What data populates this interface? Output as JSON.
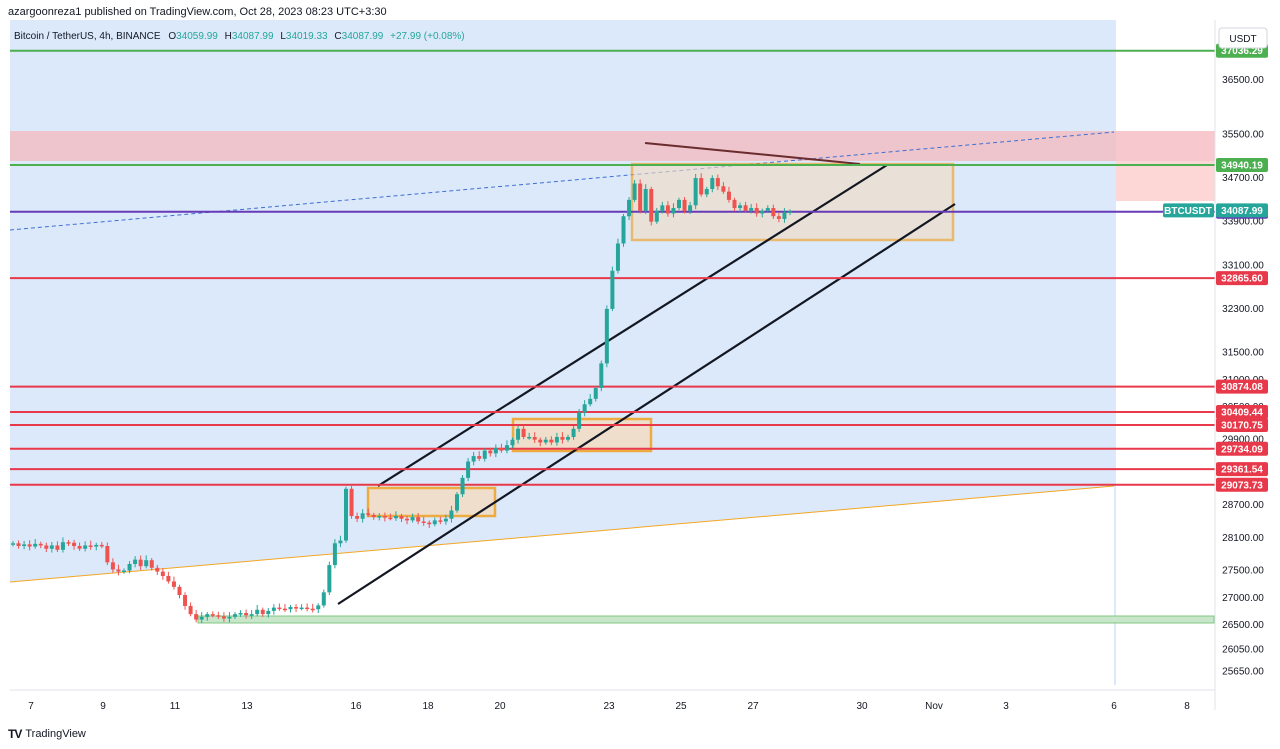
{
  "caption": "azargoonreza1 published on TradingView.com, Oct 28, 2023 08:23 UTC+3:30",
  "footer_brand": "TradingView",
  "legend": {
    "symbol": "Bitcoin / TetherUS, 4h, BINANCE",
    "o_label": "O",
    "o": "34059.99",
    "h_label": "H",
    "h": "34087.99",
    "l_label": "L",
    "l": "34019.33",
    "c_label": "C",
    "c": "34087.99",
    "change": "+27.99 (+0.08%)"
  },
  "currency": "USDT",
  "colors": {
    "up": "#26a69a",
    "down": "#ef5350",
    "red_line": "#e8394b",
    "green_line": "#4caf50",
    "purple_line": "#673ab7",
    "orange": "#f39c12",
    "channel": "#131722",
    "bg_zone": "#dbe9fb"
  },
  "chart_data": {
    "type": "candlestick",
    "symbol": "BTCUSDT",
    "timeframe": "4h",
    "x_ticks": [
      "7",
      "9",
      "11",
      "13",
      "16",
      "18",
      "20",
      "23",
      "25",
      "27",
      "30",
      "Nov",
      "3",
      "6",
      "8"
    ],
    "y_ticks": [
      25650,
      26050,
      26500,
      27000,
      27500,
      28100,
      28700,
      29300,
      29900,
      30500,
      31000,
      31500,
      32300,
      33100,
      33900,
      34700,
      35500,
      36500
    ],
    "y_tick_labels": [
      "25650.00",
      "26050.00",
      "26500.00",
      "27000.00",
      "27500.00",
      "28100.00",
      "28700.00",
      "29300.00",
      "29900.00",
      "30500.00",
      "31000.00",
      "31500.00",
      "32300.00",
      "33100.00",
      "33900.00",
      "34700.00",
      "35500.00",
      "36500.00"
    ],
    "ylim": [
      25400,
      37600
    ],
    "horizontal_levels": [
      {
        "value": 37036.29,
        "label": "37036.29",
        "color": "#4caf50"
      },
      {
        "value": 34940.19,
        "label": "34940.19",
        "color": "#4caf50"
      },
      {
        "value": 34081.08,
        "label": "34081.08",
        "color": "#673ab7"
      },
      {
        "value": 32865.6,
        "label": "32865.60",
        "color": "#e8394b"
      },
      {
        "value": 30874.08,
        "label": "30874.08",
        "color": "#e8394b"
      },
      {
        "value": 30409.44,
        "label": "30409.44",
        "color": "#e8394b"
      },
      {
        "value": 30170.75,
        "label": "30170.75",
        "color": "#e8394b"
      },
      {
        "value": 29734.09,
        "label": "29734.09",
        "color": "#e8394b"
      },
      {
        "value": 29361.54,
        "label": "29361.54",
        "color": "#e8394b"
      },
      {
        "value": 29073.73,
        "label": "29073.73",
        "color": "#e8394b"
      }
    ],
    "last_price": {
      "label": "BTCUSDT",
      "value": 34087.99,
      "text": "34087.99"
    },
    "closes": [
      28000,
      27950,
      27980,
      27940,
      27990,
      27960,
      27900,
      27960,
      27880,
      28020,
      28010,
      27950,
      27900,
      27960,
      27940,
      27970,
      27950,
      27650,
      27520,
      27480,
      27500,
      27620,
      27700,
      27580,
      27690,
      27550,
      27480,
      27400,
      27300,
      27200,
      27050,
      26850,
      26700,
      26600,
      26650,
      26700,
      26680,
      26660,
      26620,
      26650,
      26700,
      26720,
      26680,
      26700,
      26780,
      26700,
      26760,
      26820,
      26800,
      26790,
      26830,
      26810,
      26820,
      26800,
      26790,
      26860,
      27100,
      27600,
      28000,
      28050,
      29000,
      28500,
      28450,
      28550,
      28520,
      28480,
      28500,
      28470,
      28460,
      28500,
      28450,
      28420,
      28480,
      28400,
      28380,
      28350,
      28420,
      28400,
      28450,
      28600,
      28900,
      29200,
      29500,
      29600,
      29550,
      29700,
      29650,
      29750,
      29700,
      29800,
      29900,
      30100,
      29950,
      29950,
      29900,
      29850,
      29900,
      29850,
      29950,
      29900,
      29950,
      30100,
      30400,
      30550,
      30650,
      30850,
      31300,
      32300,
      33000,
      33500,
      34000,
      34300,
      34600,
      34100,
      34500,
      33900,
      34100,
      34200,
      34050,
      34150,
      34300,
      34100,
      34200,
      34700,
      34400,
      34500,
      34700,
      34550,
      34450,
      34300,
      34150,
      34200,
      34100,
      34150,
      34050,
      34100,
      34150,
      34000,
      33950,
      34060,
      34088
    ]
  }
}
